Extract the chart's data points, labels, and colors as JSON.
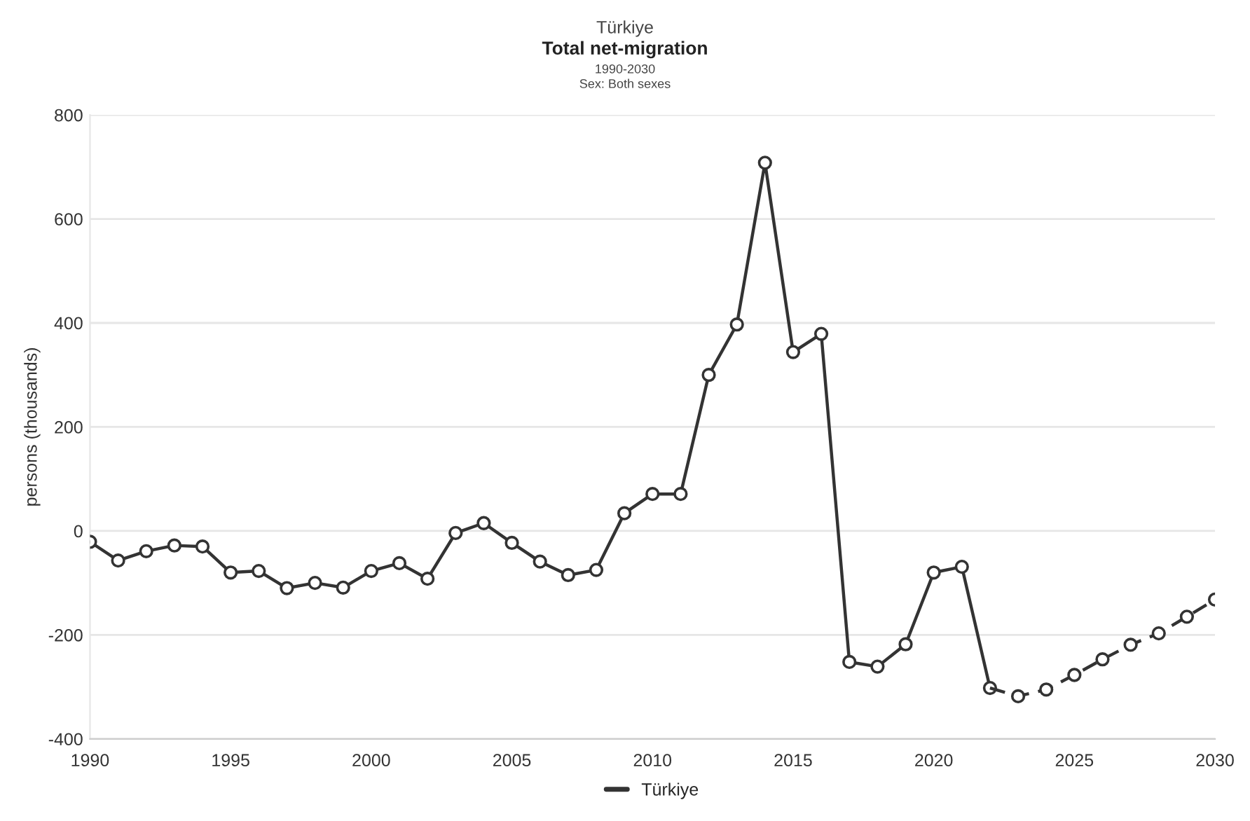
{
  "chart_data": {
    "type": "line",
    "title": "Türkiye",
    "subtitle": "Total net-migration",
    "annotations": [
      "1990-2030",
      "Sex: Both sexes"
    ],
    "ylabel": "persons (thousands)",
    "series": [
      {
        "name": "Türkiye",
        "color": "#333333",
        "line_style": "solid",
        "x": [
          1990,
          1991,
          1992,
          1993,
          1994,
          1995,
          1996,
          1997,
          1998,
          1999,
          2000,
          2001,
          2002,
          2003,
          2004,
          2005,
          2006,
          2007,
          2008,
          2009,
          2010,
          2011,
          2012,
          2013,
          2014,
          2015,
          2016,
          2017,
          2018,
          2019,
          2020,
          2021,
          2022
        ],
        "values": [
          -21,
          -57,
          -39,
          -28,
          -30,
          -80,
          -77,
          -110,
          -100,
          -109,
          -77,
          -62,
          -92,
          -4,
          15,
          -23,
          -59,
          -85,
          -75,
          34,
          71,
          71,
          300,
          397,
          708,
          344,
          379,
          -252,
          -261,
          -218,
          -80,
          -69,
          -302
        ]
      },
      {
        "color": "#333333",
        "line_style": "dashed",
        "x": [
          2022,
          2023,
          2024,
          2025,
          2026,
          2027,
          2028,
          2029,
          2030
        ],
        "values": [
          -302,
          -318,
          -305,
          -277,
          -247,
          -219,
          -197,
          -165,
          -132
        ]
      }
    ],
    "xlim": [
      1990,
      2030
    ],
    "xticks": [
      1990,
      1995,
      2000,
      2005,
      2010,
      2015,
      2020,
      2025,
      2030
    ],
    "ylim": [
      -400,
      800
    ],
    "yticks": [
      -400,
      -200,
      0,
      200,
      400,
      600,
      800
    ],
    "grid": "y",
    "legend": "bottom",
    "marker": "circle"
  }
}
